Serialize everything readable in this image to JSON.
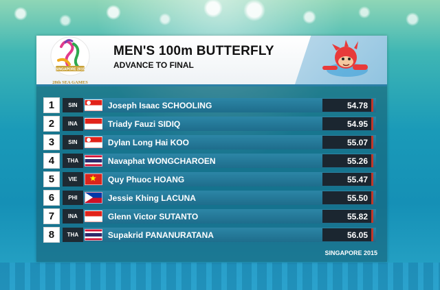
{
  "event": {
    "title": "MEN'S 100m BUTTERFLY",
    "subtitle": "ADVANCE TO FINAL",
    "footer": "SINGAPORE 2015"
  },
  "logo": {
    "text_top": "SINGAPORE 2015",
    "text_bottom": "28th SEA GAMES"
  },
  "results": [
    {
      "rank": "1",
      "code": "SIN",
      "flag": "singapore-flag",
      "name": "Joseph Isaac SCHOOLING",
      "time": "54.78"
    },
    {
      "rank": "2",
      "code": "INA",
      "flag": "indonesia-flag",
      "name": "Triady Fauzi SIDIQ",
      "time": "54.95"
    },
    {
      "rank": "3",
      "code": "SIN",
      "flag": "singapore-flag",
      "name": "Dylan Long Hai KOO",
      "time": "55.07"
    },
    {
      "rank": "4",
      "code": "THA",
      "flag": "thailand-flag",
      "name": "Navaphat WONGCHAROEN",
      "time": "55.26"
    },
    {
      "rank": "5",
      "code": "VIE",
      "flag": "vietnam-flag",
      "name": "Quy Phuoc HOANG",
      "time": "55.47"
    },
    {
      "rank": "6",
      "code": "PHI",
      "flag": "philippines-flag",
      "name": "Jessie Khing LACUNA",
      "time": "55.50"
    },
    {
      "rank": "7",
      "code": "INA",
      "flag": "indonesia-flag",
      "name": "Glenn Victor SUTANTO",
      "time": "55.82"
    },
    {
      "rank": "8",
      "code": "THA",
      "flag": "thailand-flag",
      "name": "Supakrid PANANURATANA",
      "time": "56.05"
    }
  ],
  "colors": {
    "bar": "#1e6d8c",
    "time_box": "#1b2630",
    "accent_red": "#c0392b"
  }
}
